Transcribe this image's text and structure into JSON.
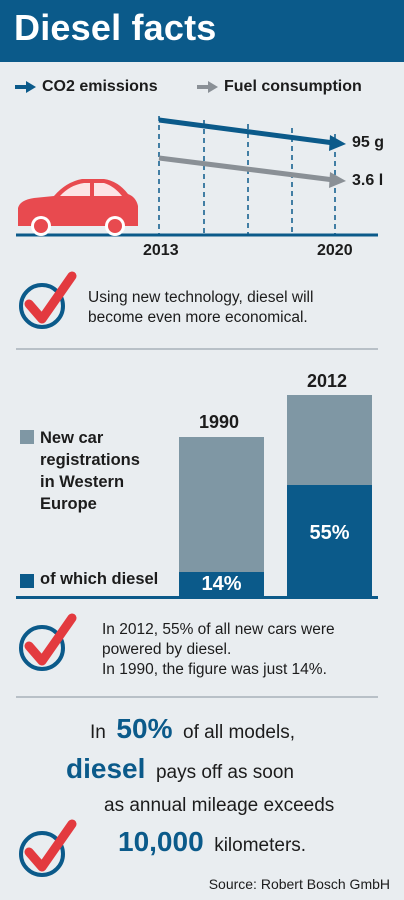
{
  "title": "Diesel facts",
  "colors": {
    "blue": "#0b5a8a",
    "gray": "#7f97a4",
    "car": "#e84a4f",
    "check": "#e33a3f"
  },
  "legend": {
    "co2_label": "CO2 emissions",
    "fuel_label": "Fuel consumption"
  },
  "trend": {
    "year_start": "2013",
    "year_end": "2020",
    "co2_end_label": "95 g",
    "fuel_end_label": "3.6 l"
  },
  "statements": {
    "economy": [
      "Using new technology, diesel will",
      "become even more economical."
    ],
    "registrations": [
      "In 2012, 55% of all new cars were",
      "powered by diesel.",
      "In 1990, the figure was just 14%."
    ]
  },
  "chart_data": {
    "type": "bar",
    "categories": [
      "1990",
      "2012"
    ],
    "series": [
      {
        "name": "of which diesel",
        "values": [
          14,
          55
        ]
      }
    ],
    "labels": [
      "14%",
      "55%"
    ],
    "legend": [
      "New car registrations in Western Europe",
      "of which diesel"
    ]
  },
  "registrations_legend": {
    "total_lines": [
      "New car",
      "registrations",
      "in Western",
      "Europe"
    ],
    "diesel": "of which diesel"
  },
  "payoff": {
    "l1_pre": "In",
    "l1_big": "50%",
    "l1_post": "of all models,",
    "l2_big": "diesel",
    "l2_post": "pays off as soon",
    "l3": "as annual mileage exceeds",
    "l4_big": "10,000",
    "l4_post": "kilometers."
  },
  "source": "Source: Robert Bosch GmbH"
}
